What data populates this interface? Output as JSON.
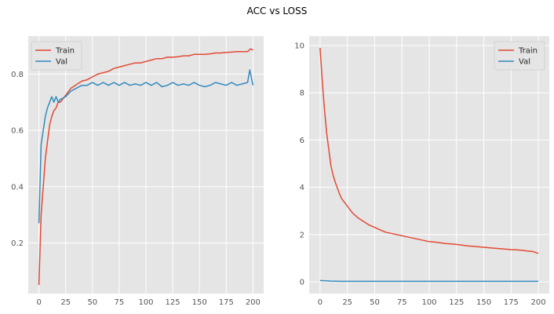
{
  "chart_data": {
    "title": "ACC vs LOSS",
    "panels": [
      {
        "type": "line",
        "xlim": [
          -10,
          210
        ],
        "ylim": [
          0.02,
          0.935
        ],
        "xticks": [
          0,
          25,
          50,
          75,
          100,
          125,
          150,
          175,
          200
        ],
        "yticks": [
          0.2,
          0.4,
          0.6,
          0.8
        ],
        "ytick_labels": [
          "0.2",
          "0.4",
          "0.6",
          "0.8"
        ],
        "legend_position": "upper left",
        "grid": true,
        "series": [
          {
            "name": "Train",
            "color": "#E24A33",
            "x": [
              0,
              2,
              4,
              6,
              8,
              10,
              12,
              14,
              16,
              18,
              20,
              22,
              24,
              26,
              28,
              30,
              32,
              34,
              36,
              38,
              40,
              45,
              50,
              55,
              60,
              65,
              70,
              75,
              80,
              85,
              90,
              95,
              100,
              105,
              110,
              115,
              120,
              125,
              130,
              135,
              140,
              145,
              150,
              155,
              160,
              165,
              170,
              175,
              180,
              185,
              190,
              195,
              198,
              200
            ],
            "y": [
              0.05,
              0.3,
              0.4,
              0.5,
              0.56,
              0.62,
              0.65,
              0.67,
              0.68,
              0.7,
              0.7,
              0.71,
              0.72,
              0.73,
              0.74,
              0.75,
              0.755,
              0.76,
              0.765,
              0.77,
              0.775,
              0.78,
              0.79,
              0.8,
              0.805,
              0.81,
              0.82,
              0.825,
              0.83,
              0.835,
              0.84,
              0.84,
              0.845,
              0.85,
              0.855,
              0.855,
              0.86,
              0.86,
              0.862,
              0.865,
              0.865,
              0.87,
              0.87,
              0.87,
              0.872,
              0.875,
              0.875,
              0.877,
              0.878,
              0.88,
              0.88,
              0.88,
              0.89,
              0.885
            ]
          },
          {
            "name": "Val",
            "color": "#348ABD",
            "x": [
              0,
              2,
              4,
              6,
              8,
              10,
              12,
              14,
              16,
              18,
              20,
              25,
              30,
              35,
              40,
              45,
              50,
              55,
              60,
              65,
              70,
              75,
              80,
              85,
              90,
              95,
              100,
              105,
              110,
              115,
              120,
              125,
              130,
              135,
              140,
              145,
              150,
              155,
              160,
              165,
              170,
              175,
              180,
              185,
              190,
              195,
              197,
              200
            ],
            "y": [
              0.27,
              0.55,
              0.6,
              0.65,
              0.68,
              0.7,
              0.72,
              0.7,
              0.72,
              0.7,
              0.71,
              0.72,
              0.74,
              0.75,
              0.76,
              0.76,
              0.77,
              0.76,
              0.77,
              0.76,
              0.77,
              0.76,
              0.77,
              0.76,
              0.765,
              0.76,
              0.77,
              0.76,
              0.77,
              0.755,
              0.76,
              0.77,
              0.76,
              0.765,
              0.76,
              0.77,
              0.76,
              0.755,
              0.76,
              0.77,
              0.765,
              0.76,
              0.77,
              0.76,
              0.765,
              0.77,
              0.815,
              0.76
            ]
          }
        ]
      },
      {
        "type": "line",
        "xlim": [
          -10,
          210
        ],
        "ylim": [
          -0.5,
          10.4
        ],
        "xticks": [
          0,
          25,
          50,
          75,
          100,
          125,
          150,
          175,
          200
        ],
        "yticks": [
          0,
          2,
          4,
          6,
          8,
          10
        ],
        "ytick_labels": [
          "0",
          "2",
          "4",
          "6",
          "8",
          "10"
        ],
        "legend_position": "upper right",
        "grid": true,
        "series": [
          {
            "name": "Train",
            "color": "#E24A33",
            "x": [
              0,
              2,
              4,
              6,
              8,
              10,
              12,
              14,
              16,
              18,
              20,
              25,
              30,
              35,
              40,
              45,
              50,
              55,
              60,
              65,
              70,
              75,
              80,
              85,
              90,
              95,
              100,
              105,
              110,
              115,
              120,
              125,
              130,
              135,
              140,
              145,
              150,
              155,
              160,
              165,
              170,
              175,
              180,
              185,
              190,
              195,
              200
            ],
            "y": [
              9.9,
              8.5,
              7.3,
              6.3,
              5.6,
              4.9,
              4.5,
              4.2,
              3.95,
              3.7,
              3.5,
              3.2,
              2.9,
              2.7,
              2.55,
              2.4,
              2.3,
              2.2,
              2.1,
              2.05,
              2.0,
              1.95,
              1.9,
              1.85,
              1.8,
              1.75,
              1.7,
              1.68,
              1.65,
              1.62,
              1.6,
              1.58,
              1.55,
              1.52,
              1.5,
              1.48,
              1.46,
              1.44,
              1.42,
              1.4,
              1.38,
              1.36,
              1.35,
              1.33,
              1.3,
              1.28,
              1.2
            ]
          },
          {
            "name": "Val",
            "color": "#348ABD",
            "x": [
              0,
              10,
              20,
              50,
              100,
              150,
              200
            ],
            "y": [
              0.05,
              0.03,
              0.02,
              0.02,
              0.02,
              0.02,
              0.02
            ]
          }
        ]
      }
    ]
  }
}
